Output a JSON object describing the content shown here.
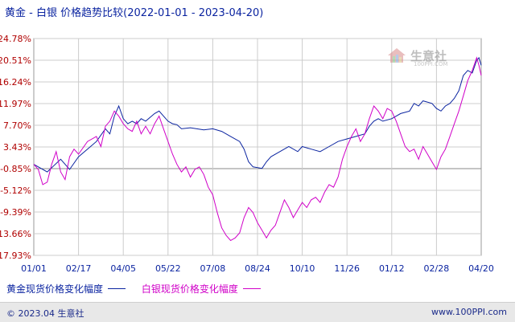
{
  "title": {
    "left": "黄金",
    "sep": "-",
    "right": "白银",
    "suffix": "价格趋势比较(2022-01-01 - 2023-04-20)"
  },
  "watermark": {
    "text": "生意社",
    "sub": "100PPI.COM"
  },
  "footer": {
    "left": "© 2023.04 生意社",
    "right": "www.100PPI.com"
  },
  "colors": {
    "gold": "#0b24a0",
    "silver": "#d000c8",
    "grid": "#cccccc",
    "zero": "#888888"
  },
  "chart_data": {
    "type": "line",
    "x_ticks": [
      "01/01",
      "02/17",
      "04/05",
      "05/22",
      "07/08",
      "08/24",
      "10/10",
      "11/26",
      "01/12",
      "02/28",
      "04/20"
    ],
    "y_ticks": [
      "24.78%",
      "20.51%",
      "16.24%",
      "11.97%",
      "7.70%",
      "3.43%",
      "-0.85%",
      "-5.12%",
      "-9.39%",
      "-13.66%",
      "-17.93%"
    ],
    "ylim": [
      -17.93,
      24.78
    ],
    "grid": true,
    "legend_position": "bottom-left",
    "series": [
      {
        "name": "黄金现货价格变化幅度",
        "color": "#0b24a0",
        "points": [
          [
            0,
            0.0
          ],
          [
            3,
            -1.5
          ],
          [
            6,
            1.0
          ],
          [
            8,
            -1.0
          ],
          [
            10,
            1.5
          ],
          [
            12,
            3.0
          ],
          [
            14,
            4.5
          ],
          [
            16,
            7.0
          ],
          [
            17,
            6.0
          ],
          [
            18,
            9.5
          ],
          [
            19,
            11.5
          ],
          [
            20,
            9.0
          ],
          [
            21,
            8.0
          ],
          [
            22,
            8.5
          ],
          [
            23,
            8.0
          ],
          [
            24,
            9.0
          ],
          [
            25,
            8.5
          ],
          [
            27,
            10.0
          ],
          [
            28,
            10.5
          ],
          [
            29,
            9.5
          ],
          [
            30,
            8.5
          ],
          [
            31,
            8.0
          ],
          [
            32,
            7.8
          ],
          [
            33,
            7.0
          ],
          [
            35,
            7.2
          ],
          [
            38,
            6.8
          ],
          [
            40,
            7.0
          ],
          [
            42,
            6.5
          ],
          [
            44,
            5.5
          ],
          [
            46,
            4.5
          ],
          [
            47,
            3.0
          ],
          [
            48,
            0.5
          ],
          [
            49,
            -0.5
          ],
          [
            51,
            -0.8
          ],
          [
            52,
            0.5
          ],
          [
            53,
            1.5
          ],
          [
            55,
            2.5
          ],
          [
            57,
            3.5
          ],
          [
            59,
            2.5
          ],
          [
            60,
            3.5
          ],
          [
            62,
            3.0
          ],
          [
            64,
            2.5
          ],
          [
            66,
            3.5
          ],
          [
            68,
            4.5
          ],
          [
            70,
            5.0
          ],
          [
            72,
            5.5
          ],
          [
            74,
            6.0
          ],
          [
            75,
            7.5
          ],
          [
            76,
            8.5
          ],
          [
            77,
            9.0
          ],
          [
            78,
            8.5
          ],
          [
            80,
            9.0
          ],
          [
            82,
            10.0
          ],
          [
            84,
            10.5
          ],
          [
            85,
            12.0
          ],
          [
            86,
            11.5
          ],
          [
            87,
            12.5
          ],
          [
            89,
            12.0
          ],
          [
            90,
            11.0
          ],
          [
            91,
            10.5
          ],
          [
            92,
            11.5
          ],
          [
            93,
            12.0
          ],
          [
            94,
            13.0
          ],
          [
            95,
            14.5
          ],
          [
            96,
            17.5
          ],
          [
            97,
            18.5
          ],
          [
            98,
            18.0
          ],
          [
            99,
            20.5
          ],
          [
            99.5,
            21.0
          ],
          [
            100,
            19.5
          ]
        ]
      },
      {
        "name": "白银现货价格变化幅度",
        "color": "#d000c8",
        "points": [
          [
            0,
            0.0
          ],
          [
            1,
            -1.0
          ],
          [
            2,
            -4.0
          ],
          [
            3,
            -3.5
          ],
          [
            4,
            0.0
          ],
          [
            5,
            2.5
          ],
          [
            6,
            -1.5
          ],
          [
            7,
            -3.0
          ],
          [
            8,
            1.5
          ],
          [
            9,
            3.0
          ],
          [
            10,
            2.0
          ],
          [
            12,
            4.5
          ],
          [
            14,
            5.5
          ],
          [
            15,
            3.5
          ],
          [
            16,
            7.5
          ],
          [
            17,
            8.5
          ],
          [
            18,
            10.5
          ],
          [
            19,
            9.5
          ],
          [
            20,
            8.0
          ],
          [
            21,
            7.0
          ],
          [
            22,
            6.5
          ],
          [
            23,
            8.5
          ],
          [
            24,
            6.0
          ],
          [
            25,
            7.5
          ],
          [
            26,
            6.0
          ],
          [
            27,
            8.0
          ],
          [
            28,
            9.5
          ],
          [
            29,
            7.0
          ],
          [
            30,
            4.5
          ],
          [
            31,
            2.0
          ],
          [
            32,
            0.0
          ],
          [
            33,
            -1.5
          ],
          [
            34,
            -0.5
          ],
          [
            35,
            -2.5
          ],
          [
            36,
            -1.0
          ],
          [
            37,
            -0.5
          ],
          [
            38,
            -2.0
          ],
          [
            39,
            -4.5
          ],
          [
            40,
            -6.0
          ],
          [
            41,
            -9.5
          ],
          [
            42,
            -12.5
          ],
          [
            43,
            -14.0
          ],
          [
            44,
            -15.0
          ],
          [
            45,
            -14.5
          ],
          [
            46,
            -13.5
          ],
          [
            47,
            -10.5
          ],
          [
            48,
            -8.5
          ],
          [
            49,
            -9.5
          ],
          [
            50,
            -11.5
          ],
          [
            51,
            -13.0
          ],
          [
            52,
            -14.5
          ],
          [
            53,
            -13.0
          ],
          [
            54,
            -12.0
          ],
          [
            55,
            -9.5
          ],
          [
            56,
            -7.0
          ],
          [
            57,
            -8.5
          ],
          [
            58,
            -10.5
          ],
          [
            59,
            -9.0
          ],
          [
            60,
            -7.5
          ],
          [
            61,
            -8.5
          ],
          [
            62,
            -7.0
          ],
          [
            63,
            -6.5
          ],
          [
            64,
            -7.5
          ],
          [
            65,
            -5.5
          ],
          [
            66,
            -4.0
          ],
          [
            67,
            -4.5
          ],
          [
            68,
            -2.5
          ],
          [
            69,
            1.0
          ],
          [
            70,
            3.5
          ],
          [
            71,
            5.5
          ],
          [
            72,
            7.0
          ],
          [
            73,
            4.5
          ],
          [
            74,
            6.0
          ],
          [
            75,
            9.0
          ],
          [
            76,
            11.5
          ],
          [
            77,
            10.5
          ],
          [
            78,
            9.0
          ],
          [
            79,
            11.0
          ],
          [
            80,
            10.5
          ],
          [
            81,
            8.5
          ],
          [
            82,
            6.0
          ],
          [
            83,
            3.5
          ],
          [
            84,
            2.5
          ],
          [
            85,
            3.0
          ],
          [
            86,
            1.0
          ],
          [
            87,
            3.5
          ],
          [
            88,
            2.0
          ],
          [
            89,
            0.5
          ],
          [
            90,
            -1.0
          ],
          [
            91,
            1.5
          ],
          [
            92,
            3.0
          ],
          [
            93,
            5.5
          ],
          [
            94,
            8.0
          ],
          [
            95,
            10.5
          ],
          [
            96,
            13.5
          ],
          [
            97,
            16.5
          ],
          [
            98,
            18.5
          ],
          [
            99,
            21.0
          ],
          [
            99.5,
            19.5
          ],
          [
            100,
            17.5
          ]
        ]
      }
    ]
  }
}
